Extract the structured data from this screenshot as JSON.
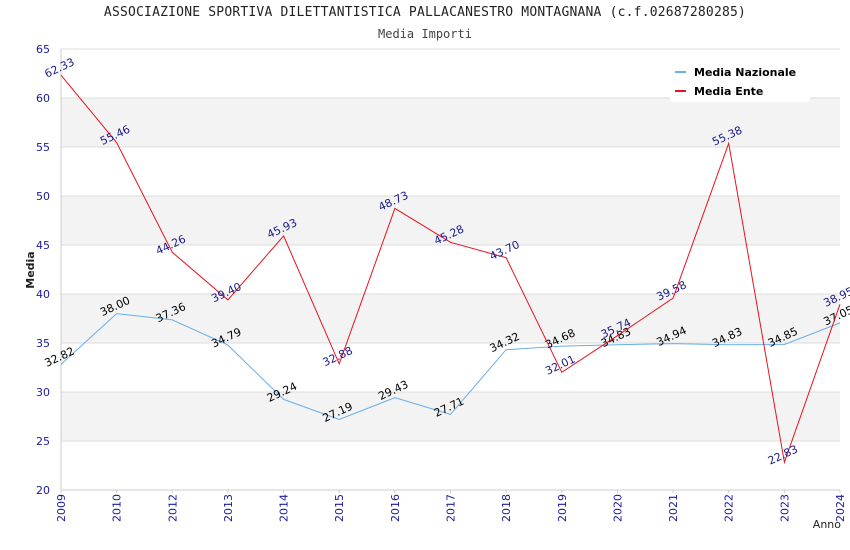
{
  "chart_data": {
    "type": "line",
    "title": "ASSOCIAZIONE SPORTIVA DILETTANTISTICA PALLACANESTRO MONTAGNANA (c.f.02687280285)",
    "subtitle": "Media Importi",
    "xlabel": "Anno",
    "ylabel": "Media",
    "ylim": [
      20,
      65
    ],
    "yticks": [
      20,
      25,
      30,
      35,
      40,
      45,
      50,
      55,
      60,
      65
    ],
    "categories": [
      "2009",
      "2010",
      "2012",
      "2013",
      "2014",
      "2015",
      "2016",
      "2017",
      "2018",
      "2019",
      "2020",
      "2021",
      "2022",
      "2023",
      "2024"
    ],
    "series": [
      {
        "name": "Media Nazionale",
        "color": "#6aaee8",
        "label_color": "#000000",
        "values": [
          32.82,
          38.0,
          37.36,
          34.79,
          29.24,
          27.19,
          29.43,
          27.71,
          34.32,
          34.68,
          34.83,
          34.94,
          34.83,
          34.85,
          37.05
        ],
        "labels": [
          "32.82",
          "38.00",
          "37.36",
          "34.79",
          "29.24",
          "27.19",
          "29.43",
          "27.71",
          "34.32",
          "34.68",
          "34.83",
          "34.94",
          "34.83",
          "34.85",
          "37.05"
        ]
      },
      {
        "name": "Media Ente",
        "color": "#e8111e",
        "label_color": "#1a1a8c",
        "values": [
          62.33,
          55.46,
          44.26,
          39.4,
          45.93,
          32.88,
          48.73,
          45.28,
          43.7,
          32.01,
          35.74,
          39.58,
          55.38,
          22.83,
          38.95
        ],
        "labels": [
          "62.33",
          "55.46",
          "44.26",
          "39.40",
          "45.93",
          "32.88",
          "48.73",
          "45.28",
          "43.70",
          "32.01",
          "35.74",
          "39.58",
          "55.38",
          "22.83",
          "38.95"
        ]
      }
    ],
    "grid": "horizontal-bands",
    "legend_position": "top-right"
  }
}
